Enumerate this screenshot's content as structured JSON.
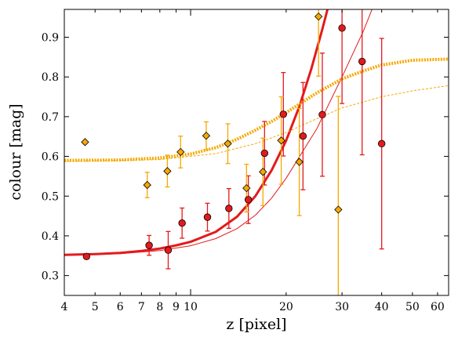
{
  "chart_data": {
    "type": "scatter",
    "title": "",
    "xlabel": "z [pixel]",
    "ylabel": "colour [mag]",
    "xscale": "log",
    "xlim": [
      4,
      65
    ],
    "ylim": [
      0.25,
      0.97
    ],
    "grid": false,
    "legend": "none",
    "x_ticks": [
      4,
      5,
      6,
      7,
      8,
      9,
      10,
      20,
      30,
      40,
      50,
      60
    ],
    "x_tick_labels": [
      "4",
      "5",
      "6",
      "7",
      "8",
      "9",
      "10",
      "20",
      "30",
      "40",
      "50",
      "60"
    ],
    "y_ticks": [
      0.3,
      0.4,
      0.5,
      0.6,
      0.7,
      0.8,
      0.9
    ],
    "y_tick_labels": [
      "0.3",
      "0.4",
      "0.5",
      "0.6",
      "0.7",
      "0.8",
      "0.9"
    ],
    "series": [
      {
        "marker": "circle",
        "color": "#e31a1c",
        "points": [
          {
            "x": 4.7,
            "y": 0.348,
            "err": 0.006
          },
          {
            "x": 7.4,
            "y": 0.376,
            "err": 0.025
          },
          {
            "x": 8.5,
            "y": 0.364,
            "err": 0.047
          },
          {
            "x": 9.4,
            "y": 0.432,
            "err": 0.038
          },
          {
            "x": 11.3,
            "y": 0.447,
            "err": 0.035
          },
          {
            "x": 13.2,
            "y": 0.469,
            "err": 0.05
          },
          {
            "x": 15.2,
            "y": 0.491,
            "err": 0.06
          },
          {
            "x": 17.1,
            "y": 0.608,
            "err": 0.08
          },
          {
            "x": 19.6,
            "y": 0.706,
            "err": 0.105
          },
          {
            "x": 22.6,
            "y": 0.651,
            "err": 0.135
          },
          {
            "x": 26.0,
            "y": 0.705,
            "err": 0.155
          },
          {
            "x": 30.0,
            "y": 0.923,
            "err": 0.19
          },
          {
            "x": 34.7,
            "y": 0.839,
            "err": 0.235
          },
          {
            "x": 40.0,
            "y": 0.632,
            "err": 0.265
          }
        ]
      },
      {
        "marker": "diamond",
        "color": "#f5a800",
        "points": [
          {
            "x": 4.65,
            "y": 0.636,
            "err": 0.0
          },
          {
            "x": 7.3,
            "y": 0.528,
            "err": 0.032
          },
          {
            "x": 8.45,
            "y": 0.563,
            "err": 0.04
          },
          {
            "x": 9.3,
            "y": 0.611,
            "err": 0.04
          },
          {
            "x": 11.2,
            "y": 0.652,
            "err": 0.035
          },
          {
            "x": 13.1,
            "y": 0.632,
            "err": 0.05
          },
          {
            "x": 15.0,
            "y": 0.52,
            "err": 0.06
          },
          {
            "x": 16.9,
            "y": 0.561,
            "err": 0.085
          },
          {
            "x": 19.3,
            "y": 0.64,
            "err": 0.11
          },
          {
            "x": 22.0,
            "y": 0.586,
            "err": 0.135
          },
          {
            "x": 25.3,
            "y": 0.952,
            "err": 0.15
          },
          {
            "x": 29.2,
            "y": 0.466,
            "err": 0.285
          }
        ]
      }
    ],
    "curves": [
      {
        "color": "#e31a1c",
        "style": "solid-thick",
        "points": [
          [
            4,
            0.352
          ],
          [
            5,
            0.354
          ],
          [
            6,
            0.357
          ],
          [
            7,
            0.362
          ],
          [
            8,
            0.368
          ],
          [
            9,
            0.376
          ],
          [
            10,
            0.385
          ],
          [
            12,
            0.41
          ],
          [
            14,
            0.448
          ],
          [
            16,
            0.5
          ],
          [
            18,
            0.565
          ],
          [
            20,
            0.64
          ],
          [
            22,
            0.725
          ],
          [
            24,
            0.82
          ],
          [
            26,
            0.92
          ],
          [
            27.3,
            0.985
          ]
        ]
      },
      {
        "color": "#e31a1c",
        "style": "solid-thin",
        "points": [
          [
            4,
            0.351
          ],
          [
            6,
            0.355
          ],
          [
            8,
            0.363
          ],
          [
            10,
            0.375
          ],
          [
            12,
            0.393
          ],
          [
            14,
            0.418
          ],
          [
            16,
            0.452
          ],
          [
            18,
            0.495
          ],
          [
            20,
            0.545
          ],
          [
            25,
            0.67
          ],
          [
            30,
            0.8
          ],
          [
            35,
            0.915
          ],
          [
            37.5,
            0.975
          ]
        ]
      },
      {
        "color": "#f5a800",
        "style": "dotted-thick",
        "points": [
          [
            4,
            0.59
          ],
          [
            6,
            0.591
          ],
          [
            8,
            0.596
          ],
          [
            10,
            0.606
          ],
          [
            12,
            0.622
          ],
          [
            14,
            0.643
          ],
          [
            16,
            0.666
          ],
          [
            18,
            0.688
          ],
          [
            20,
            0.71
          ],
          [
            25,
            0.76
          ],
          [
            30,
            0.795
          ],
          [
            35,
            0.815
          ],
          [
            40,
            0.83
          ],
          [
            50,
            0.842
          ],
          [
            65,
            0.845
          ]
        ]
      },
      {
        "color": "#f5a800",
        "style": "dotted-thin",
        "points": [
          [
            4,
            0.587
          ],
          [
            8,
            0.592
          ],
          [
            12,
            0.607
          ],
          [
            16,
            0.632
          ],
          [
            20,
            0.66
          ],
          [
            25,
            0.695
          ],
          [
            30,
            0.722
          ],
          [
            40,
            0.75
          ],
          [
            50,
            0.765
          ],
          [
            65,
            0.778
          ]
        ]
      }
    ]
  }
}
